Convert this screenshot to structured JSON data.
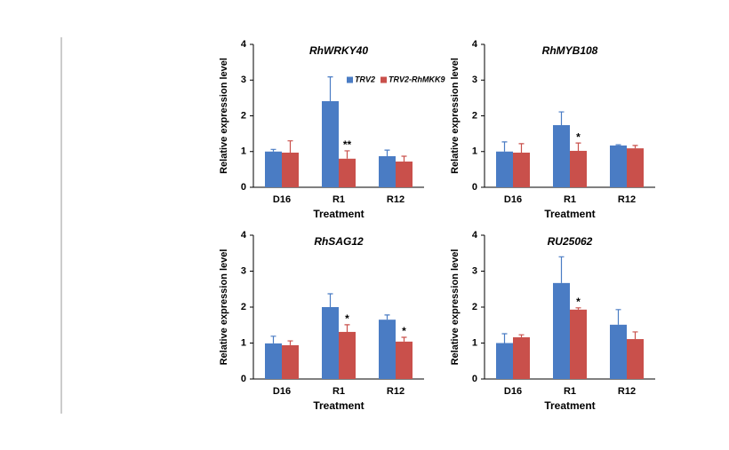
{
  "chart_data": [
    {
      "type": "bar",
      "title": "RhWRKY40",
      "xlabel": "Treatment",
      "ylabel": "Relative expression level",
      "categories": [
        "D16",
        "R1",
        "R12"
      ],
      "ylim": [
        0,
        4
      ],
      "yticks": [
        0,
        1,
        2,
        3,
        4
      ],
      "legend": "upper right",
      "series": [
        {
          "name": "TRV2",
          "color": "#4a7cc4",
          "values": [
            1.0,
            2.41,
            0.87
          ],
          "errors": [
            0.06,
            0.68,
            0.17
          ],
          "significance": [
            null,
            null,
            null
          ]
        },
        {
          "name": "TRV2-RhMKK9",
          "color": "#c9504b",
          "values": [
            0.97,
            0.8,
            0.72
          ],
          "errors": [
            0.33,
            0.22,
            0.15
          ],
          "significance": [
            null,
            "**",
            null
          ]
        }
      ]
    },
    {
      "type": "bar",
      "title": "RhMYB108",
      "xlabel": "Treatment",
      "ylabel": "Relative expression level",
      "categories": [
        "D16",
        "R1",
        "R12"
      ],
      "ylim": [
        0,
        4
      ],
      "yticks": [
        0,
        1,
        2,
        3,
        4
      ],
      "series": [
        {
          "name": "TRV2",
          "color": "#4a7cc4",
          "values": [
            1.0,
            1.74,
            1.17
          ],
          "errors": [
            0.27,
            0.37,
            0.02
          ],
          "significance": [
            null,
            null,
            null
          ]
        },
        {
          "name": "TRV2-RhMKK9",
          "color": "#c9504b",
          "values": [
            0.97,
            1.02,
            1.09
          ],
          "errors": [
            0.25,
            0.22,
            0.08
          ],
          "significance": [
            null,
            "*",
            null
          ]
        }
      ]
    },
    {
      "type": "bar",
      "title": "RhSAG12",
      "xlabel": "Treatment",
      "ylabel": "Relative expression level",
      "categories": [
        "D16",
        "R1",
        "R12"
      ],
      "ylim": [
        0,
        4
      ],
      "yticks": [
        0,
        1,
        2,
        3,
        4
      ],
      "series": [
        {
          "name": "TRV2",
          "color": "#4a7cc4",
          "values": [
            0.99,
            2.0,
            1.65
          ],
          "errors": [
            0.2,
            0.37,
            0.13
          ],
          "significance": [
            null,
            null,
            null
          ]
        },
        {
          "name": "TRV2-RhMKK9",
          "color": "#c9504b",
          "values": [
            0.94,
            1.31,
            1.04
          ],
          "errors": [
            0.12,
            0.2,
            0.12
          ],
          "significance": [
            null,
            "*",
            "*"
          ]
        }
      ]
    },
    {
      "type": "bar",
      "title": "RU25062",
      "xlabel": "Treatment",
      "ylabel": "Relative expression level",
      "categories": [
        "D16",
        "R1",
        "R12"
      ],
      "ylim": [
        0,
        4
      ],
      "yticks": [
        0,
        1,
        2,
        3,
        4
      ],
      "series": [
        {
          "name": "TRV2",
          "color": "#4a7cc4",
          "values": [
            1.0,
            2.67,
            1.51
          ],
          "errors": [
            0.26,
            0.73,
            0.42
          ],
          "significance": [
            null,
            null,
            null
          ]
        },
        {
          "name": "TRV2-RhMKK9",
          "color": "#c9504b",
          "values": [
            1.16,
            1.93,
            1.11
          ],
          "errors": [
            0.07,
            0.05,
            0.2
          ],
          "significance": [
            null,
            "*",
            null
          ]
        }
      ]
    }
  ]
}
